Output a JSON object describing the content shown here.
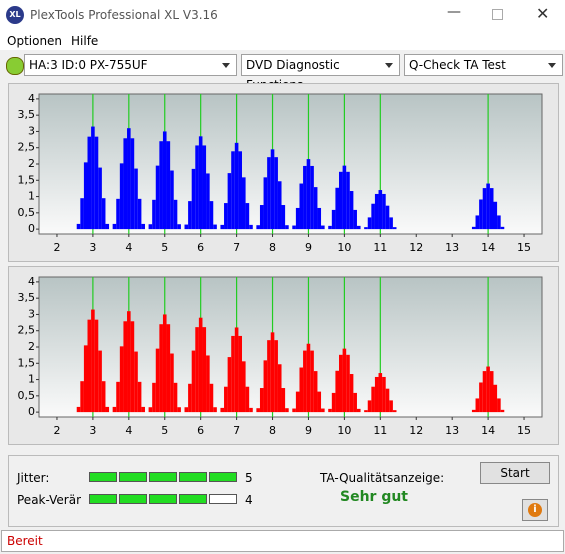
{
  "window": {
    "title": "PlexTools Professional XL V3.16",
    "logo": "XL"
  },
  "menu": [
    "Optionen",
    "Hilfe"
  ],
  "toolbar": {
    "drive": "HA:3 ID:0  PX-755UF",
    "function": "DVD Diagnostic Functions",
    "test": "Q-Check TA Test"
  },
  "chart_data": [
    {
      "type": "bar",
      "color": "#0000ff",
      "marker_color": "#22cc22",
      "x": [
        2.6,
        2.7,
        2.8,
        2.9,
        3,
        3.1,
        3.2,
        3.3,
        3.4,
        3.6,
        3.7,
        3.8,
        3.9,
        4,
        4.1,
        4.2,
        4.3,
        4.4,
        4.6,
        4.7,
        4.8,
        4.9,
        5,
        5.1,
        5.2,
        5.3,
        5.4,
        5.6,
        5.7,
        5.8,
        5.9,
        6,
        6.1,
        6.2,
        6.3,
        6.4,
        6.6,
        6.7,
        6.8,
        6.9,
        7,
        7.1,
        7.2,
        7.3,
        7.4,
        7.6,
        7.7,
        7.8,
        7.9,
        8,
        8.1,
        8.2,
        8.3,
        8.4,
        8.6,
        8.7,
        8.8,
        8.9,
        9,
        9.1,
        9.2,
        9.3,
        9.4,
        9.6,
        9.7,
        9.8,
        9.9,
        10,
        10.1,
        10.2,
        10.3,
        10.4,
        10.6,
        10.7,
        10.8,
        10.9,
        11,
        11.1,
        11.2,
        11.3,
        11.4,
        13.6,
        13.7,
        13.8,
        13.9,
        14,
        14.1,
        14.2,
        14.3,
        14.4
      ],
      "values": [
        0.16,
        0.95,
        2.05,
        2.84,
        3.15,
        2.84,
        1.89,
        0.95,
        0.16,
        0.16,
        0.93,
        2.02,
        2.79,
        3.1,
        2.79,
        1.86,
        0.93,
        0.16,
        0.15,
        0.9,
        1.95,
        2.7,
        3.0,
        2.7,
        1.8,
        0.9,
        0.15,
        0.14,
        0.86,
        1.85,
        2.57,
        2.85,
        2.57,
        1.71,
        0.86,
        0.14,
        0.13,
        0.8,
        1.72,
        2.39,
        2.65,
        2.39,
        1.59,
        0.8,
        0.13,
        0.12,
        0.74,
        1.59,
        2.21,
        2.45,
        2.21,
        1.47,
        0.74,
        0.12,
        0.11,
        0.65,
        1.4,
        1.94,
        2.15,
        1.94,
        1.29,
        0.65,
        0.11,
        0.1,
        0.59,
        1.27,
        1.76,
        1.95,
        1.76,
        1.17,
        0.59,
        0.1,
        0.06,
        0.36,
        0.78,
        1.08,
        1.2,
        1.08,
        0.72,
        0.36,
        0.06,
        0.07,
        0.42,
        0.91,
        1.26,
        1.4,
        1.26,
        0.84,
        0.42,
        0.07
      ],
      "markers": [
        3,
        4,
        5,
        6,
        7,
        8,
        9,
        10,
        11,
        14
      ],
      "xlim": [
        1.5,
        15.5
      ],
      "ylim": [
        -0.15,
        4.15
      ],
      "xticks": [
        2,
        3,
        4,
        5,
        6,
        7,
        8,
        9,
        10,
        11,
        12,
        13,
        14,
        15
      ],
      "yticks": [
        0,
        {
          "value": 0.5,
          "label": "0,5"
        },
        1,
        {
          "value": 1.5,
          "label": "1,5"
        },
        2,
        {
          "value": 2.5,
          "label": "2,5"
        },
        3,
        {
          "value": 3.5,
          "label": "3,5"
        },
        4
      ]
    },
    {
      "type": "bar",
      "color": "#ff0000",
      "marker_color": "#22cc22",
      "x": [
        2.6,
        2.7,
        2.8,
        2.9,
        3,
        3.1,
        3.2,
        3.3,
        3.4,
        3.6,
        3.7,
        3.8,
        3.9,
        4,
        4.1,
        4.2,
        4.3,
        4.4,
        4.6,
        4.7,
        4.8,
        4.9,
        5,
        5.1,
        5.2,
        5.3,
        5.4,
        5.6,
        5.7,
        5.8,
        5.9,
        6,
        6.1,
        6.2,
        6.3,
        6.4,
        6.6,
        6.7,
        6.8,
        6.9,
        7,
        7.1,
        7.2,
        7.3,
        7.4,
        7.6,
        7.7,
        7.8,
        7.9,
        8,
        8.1,
        8.2,
        8.3,
        8.4,
        8.6,
        8.7,
        8.8,
        8.9,
        9,
        9.1,
        9.2,
        9.3,
        9.4,
        9.6,
        9.7,
        9.8,
        9.9,
        10,
        10.1,
        10.2,
        10.3,
        10.4,
        10.6,
        10.7,
        10.8,
        10.9,
        11,
        11.1,
        11.2,
        11.3,
        11.4,
        13.6,
        13.7,
        13.8,
        13.9,
        14,
        14.1,
        14.2,
        14.3,
        14.4
      ],
      "values": [
        0.16,
        0.95,
        2.05,
        2.84,
        3.15,
        2.84,
        1.89,
        0.95,
        0.16,
        0.16,
        0.93,
        2.02,
        2.79,
        3.1,
        2.79,
        1.86,
        0.93,
        0.16,
        0.15,
        0.9,
        1.95,
        2.7,
        3.0,
        2.7,
        1.8,
        0.9,
        0.15,
        0.15,
        0.87,
        1.89,
        2.61,
        2.9,
        2.61,
        1.74,
        0.87,
        0.15,
        0.13,
        0.78,
        1.69,
        2.34,
        2.6,
        2.34,
        1.56,
        0.78,
        0.13,
        0.12,
        0.74,
        1.59,
        2.21,
        2.45,
        2.21,
        1.47,
        0.74,
        0.12,
        0.11,
        0.63,
        1.37,
        1.89,
        2.1,
        1.89,
        1.26,
        0.63,
        0.11,
        0.1,
        0.59,
        1.27,
        1.76,
        1.95,
        1.76,
        1.17,
        0.59,
        0.1,
        0.06,
        0.36,
        0.78,
        1.08,
        1.2,
        1.08,
        0.72,
        0.36,
        0.06,
        0.07,
        0.42,
        0.91,
        1.26,
        1.4,
        1.26,
        0.84,
        0.42,
        0.07
      ],
      "markers": [
        3,
        4,
        5,
        6,
        7,
        8,
        9,
        10,
        11,
        14
      ],
      "xlim": [
        1.5,
        15.5
      ],
      "ylim": [
        -0.15,
        4.15
      ],
      "xticks": [
        2,
        3,
        4,
        5,
        6,
        7,
        8,
        9,
        10,
        11,
        12,
        13,
        14,
        15
      ],
      "yticks": [
        0,
        {
          "value": 0.5,
          "label": "0,5"
        },
        1,
        {
          "value": 1.5,
          "label": "1,5"
        },
        2,
        {
          "value": 2.5,
          "label": "2,5"
        },
        3,
        {
          "value": 3.5,
          "label": "3,5"
        },
        4
      ]
    }
  ],
  "results": {
    "jitter_label": "Jitter:",
    "jitter": 5,
    "peak_label": "Peak-Veränderung:",
    "peak": 4,
    "quality_label": "TA-Qualitätsanzeige:",
    "quality": "Sehr gut",
    "start": "Start",
    "info": "i"
  },
  "status": "Bereit"
}
